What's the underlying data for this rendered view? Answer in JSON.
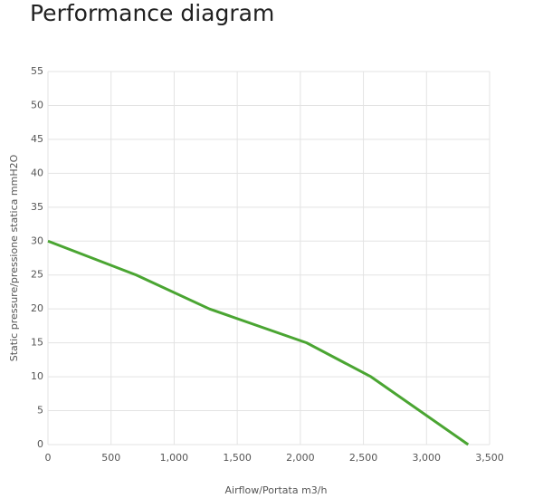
{
  "chart_data": {
    "type": "line",
    "title": "Performance diagram",
    "x_label": "Airflow/Portata m3/h",
    "y_label": "Static pressure/pressione statica mmH2O",
    "x": [
      0,
      700,
      1280,
      2050,
      2560,
      3330
    ],
    "series": [
      {
        "name": "Performance",
        "color": "#4aa532",
        "values": [
          30,
          25,
          20,
          15,
          10,
          0
        ]
      }
    ],
    "xlim": [
      0,
      3500
    ],
    "xticks": [
      0,
      500,
      {
        "value": 1000,
        "label": "1,000"
      },
      {
        "value": 1500,
        "label": "1,500"
      },
      {
        "value": 2000,
        "label": "2,000"
      },
      {
        "value": 2500,
        "label": "2,500"
      },
      {
        "value": 3000,
        "label": "3,000"
      },
      {
        "value": 3500,
        "label": "3,500"
      }
    ],
    "ylim": [
      0,
      55
    ],
    "yticks": [
      0,
      5,
      10,
      15,
      20,
      25,
      30,
      35,
      40,
      45,
      50,
      55
    ],
    "grid": true
  }
}
